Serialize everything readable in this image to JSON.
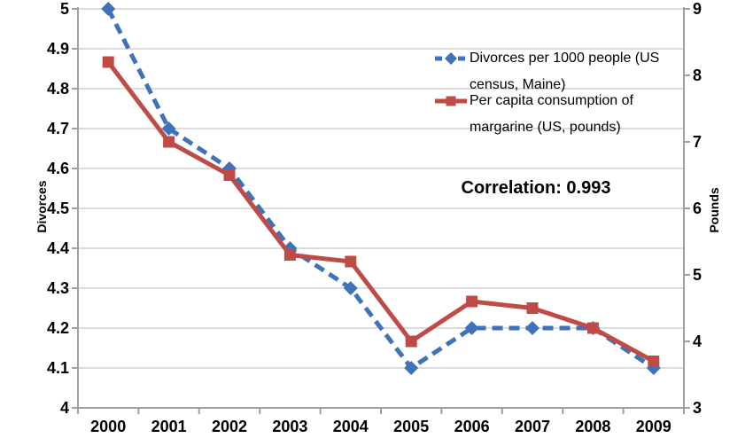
{
  "chart_data": {
    "type": "line",
    "title": "",
    "categories": [
      "2000",
      "2001",
      "2002",
      "2003",
      "2004",
      "2005",
      "2006",
      "2007",
      "2008",
      "2009"
    ],
    "series": [
      {
        "name": "Divorces per 1000 people (US census, Maine)",
        "axis": "left",
        "color": "#3F72B6",
        "line_style": "dashed",
        "marker": "diamond",
        "values": [
          5.0,
          4.7,
          4.6,
          4.4,
          4.3,
          4.1,
          4.2,
          4.2,
          4.2,
          4.1
        ]
      },
      {
        "name": "Per capita consumption of margarine (US, pounds)",
        "axis": "right",
        "color": "#BF4B47",
        "line_style": "solid",
        "marker": "square",
        "values": [
          8.2,
          7.0,
          6.5,
          5.3,
          5.2,
          4.0,
          4.6,
          4.5,
          4.2,
          3.7
        ]
      }
    ],
    "left_axis": {
      "label": "Divorces",
      "min": 4,
      "max": 5,
      "ticks": [
        {
          "label": "5",
          "value": 5
        },
        {
          "label": "4.9",
          "value": 4.9
        },
        {
          "label": "4.8",
          "value": 4.8
        },
        {
          "label": "4.7",
          "value": 4.7
        },
        {
          "label": "4.6",
          "value": 4.6
        },
        {
          "label": "4.5",
          "value": 4.5
        },
        {
          "label": "4.4",
          "value": 4.4
        },
        {
          "label": "4.3",
          "value": 4.3
        },
        {
          "label": "4.2",
          "value": 4.2
        },
        {
          "label": "4.1",
          "value": 4.1
        },
        {
          "label": "4",
          "value": 4
        }
      ]
    },
    "right_axis": {
      "label": "Pounds",
      "min": 3,
      "max": 9,
      "ticks": [
        {
          "label": "9",
          "value": 9
        },
        {
          "label": "8",
          "value": 8
        },
        {
          "label": "7",
          "value": 7
        },
        {
          "label": "6",
          "value": 6
        },
        {
          "label": "5",
          "value": 5
        },
        {
          "label": "4",
          "value": 4
        },
        {
          "label": "3",
          "value": 3
        }
      ]
    },
    "legend": {
      "position": "inside-upper-right",
      "entries": [
        {
          "line1": "Divorces per 1000 people (US",
          "line2": "census, Maine)"
        },
        {
          "line1": "Per capita consumption of",
          "line2": "margarine (US, pounds)"
        }
      ]
    },
    "annotation": {
      "text": "Correlation: 0.993"
    },
    "grid": true
  },
  "colors": {
    "gridline": "#c8c8c8",
    "axis": "#a0a0a0",
    "text": "#000000",
    "background": "#ffffff"
  }
}
